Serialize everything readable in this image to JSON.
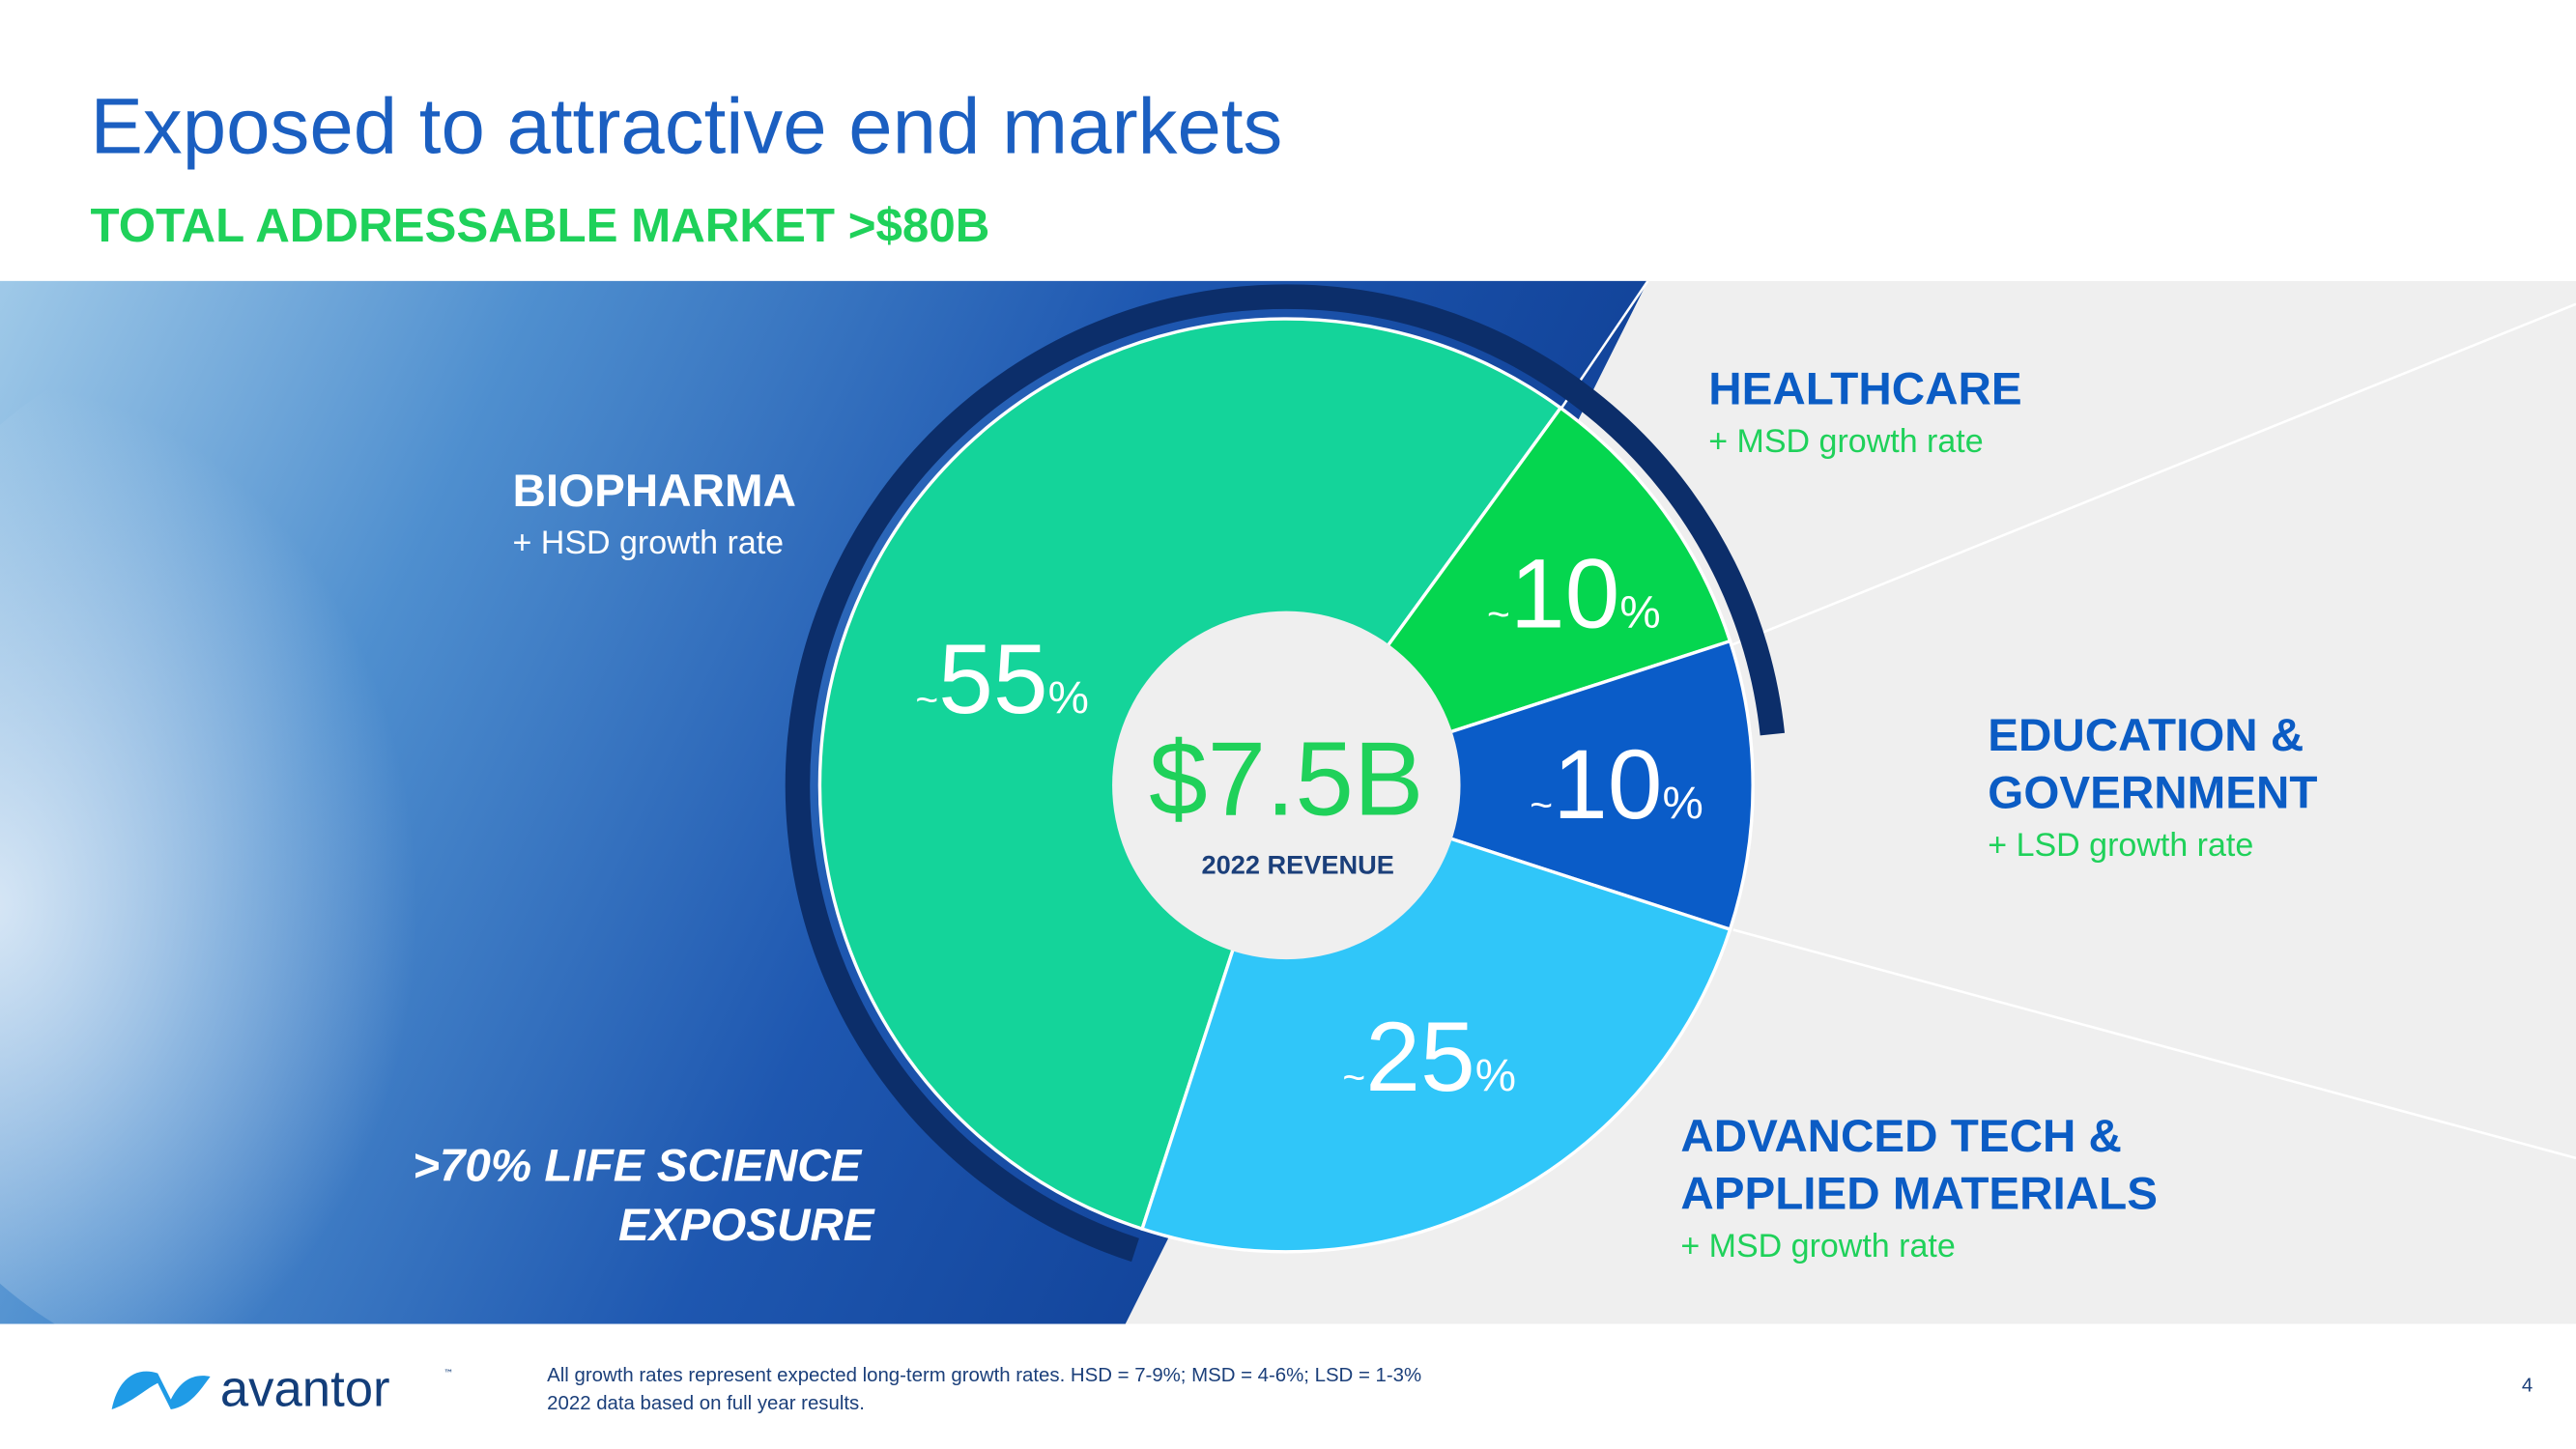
{
  "chart_data": {
    "type": "pie",
    "title": "Exposed to attractive end markets",
    "subtitle": "TOTAL ADDRESSABLE MARKET >$80B",
    "categories": [
      "BIOPHARMA",
      "HEALTHCARE",
      "EDUCATION & GOVERNMENT",
      "ADVANCED TECH & APPLIED MATERIALS"
    ],
    "growth": [
      "+ HSD growth rate",
      "+ MSD growth rate",
      "+ LSD growth rate",
      "+ MSD growth rate"
    ],
    "values": [
      55,
      10,
      10,
      25
    ],
    "value_labels": [
      "~55%",
      "~10%",
      "~10%",
      "~25%"
    ],
    "colors": [
      "#14d49a",
      "#05d64f",
      "#0a5cc8",
      "#30c6f9"
    ],
    "center_value": "$7.5B",
    "center_label": "2022 REVENUE",
    "annotation": ">70% LIFE SCIENCE EXPOSURE"
  },
  "footer": {
    "logo": "avantor",
    "trademark": "™",
    "notes": [
      "All growth rates represent expected long-term growth rates. HSD = 7-9%; MSD = 4-6%; LSD = 1-3%",
      "2022 data based on full year results."
    ],
    "page": "4"
  }
}
